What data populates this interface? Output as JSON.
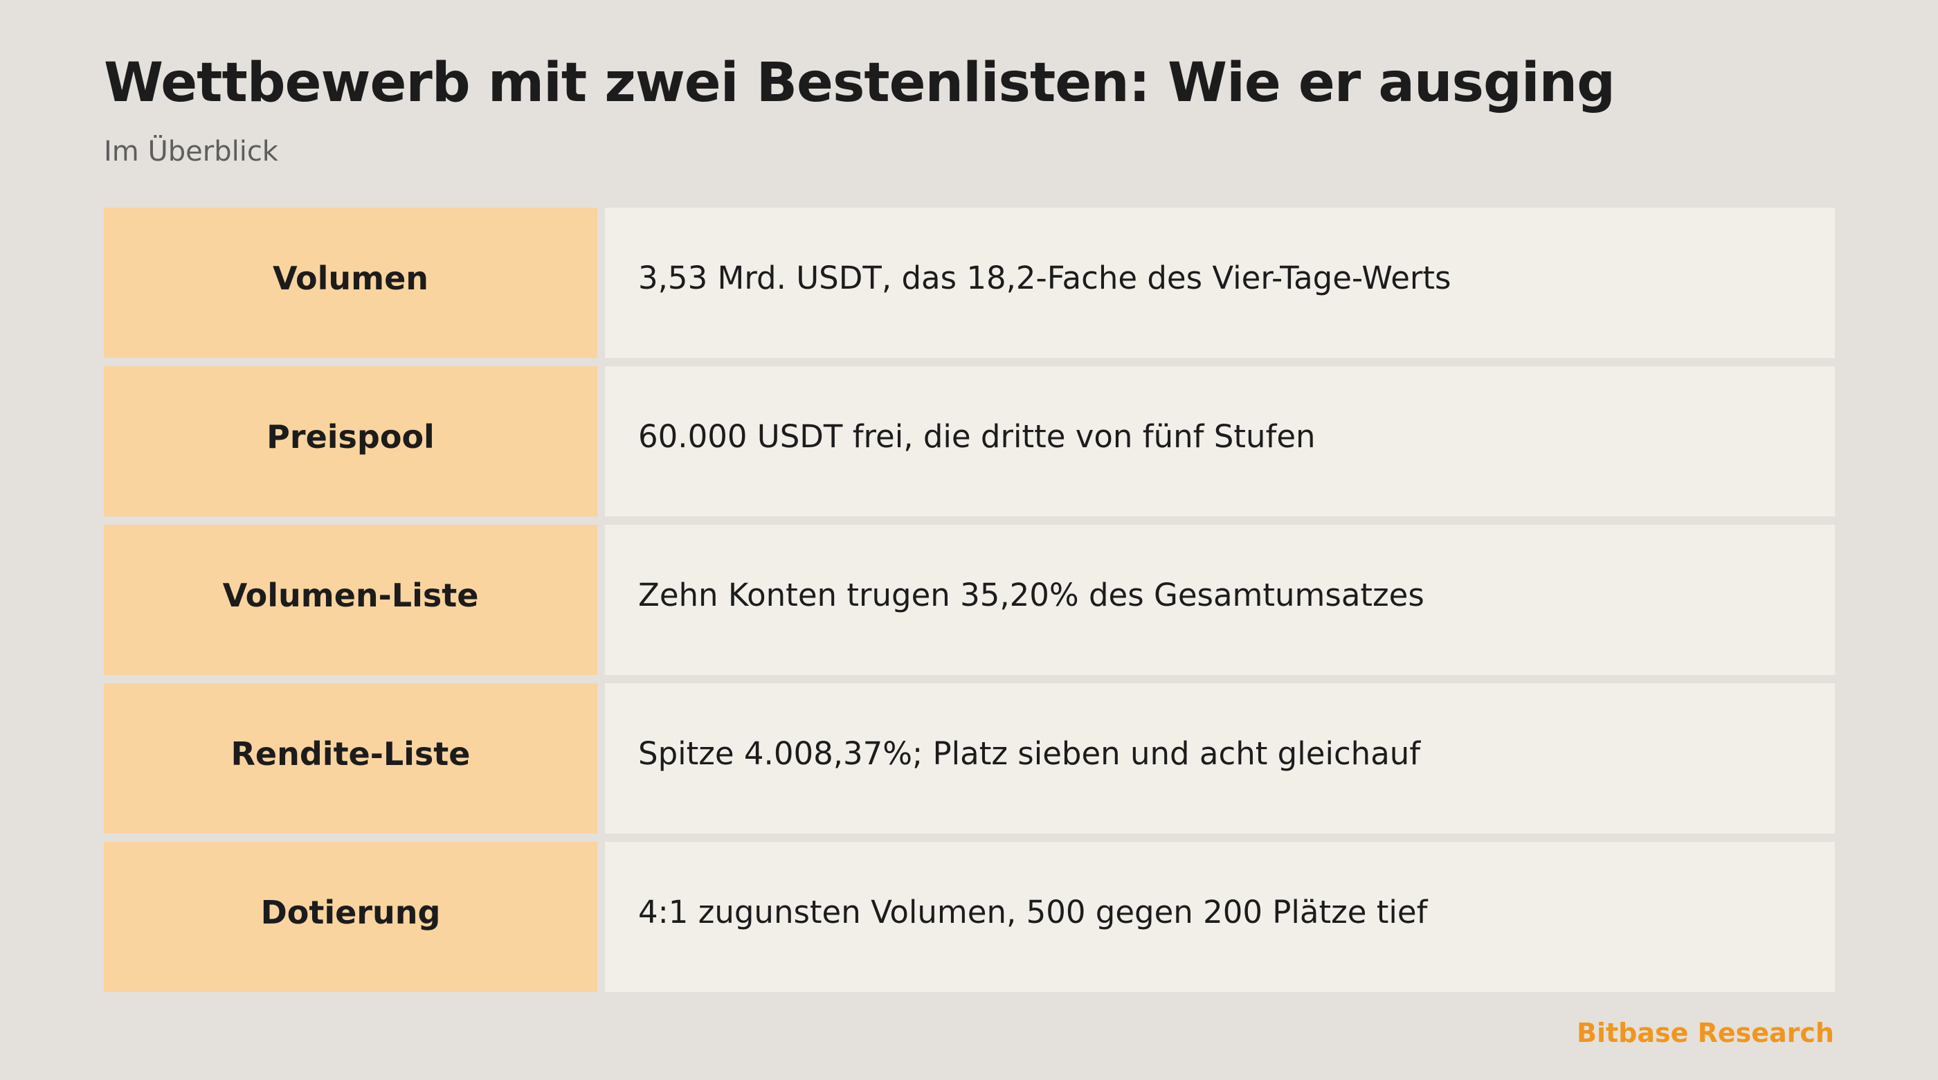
{
  "header": {
    "title": "Wettbewerb mit zwei Bestenlisten: Wie er ausging",
    "subtitle": "Im Überblick"
  },
  "table": {
    "rows": [
      {
        "label": "Volumen",
        "value": "3,53 Mrd. USDT, das 18,2-Fache des Vier-Tage-Werts"
      },
      {
        "label": "Preispool",
        "value": "60.000 USDT frei, die dritte von fünf Stufen"
      },
      {
        "label": "Volumen-Liste",
        "value": "Zehn Konten trugen 35,20% des Gesamtumsatzes"
      },
      {
        "label": "Rendite-Liste",
        "value": "Spitze 4.008,37%; Platz sieben und acht gleichauf"
      },
      {
        "label": "Dotierung",
        "value": "4:1 zugunsten Volumen, 500 gegen 200 Plätze tief"
      }
    ]
  },
  "footer": {
    "brand": "Bitbase Research"
  },
  "colors": {
    "background": "#e4e0db",
    "label_fill": "#f9d49f",
    "value_fill": "#f2efe9",
    "brand": "#f0961e"
  }
}
